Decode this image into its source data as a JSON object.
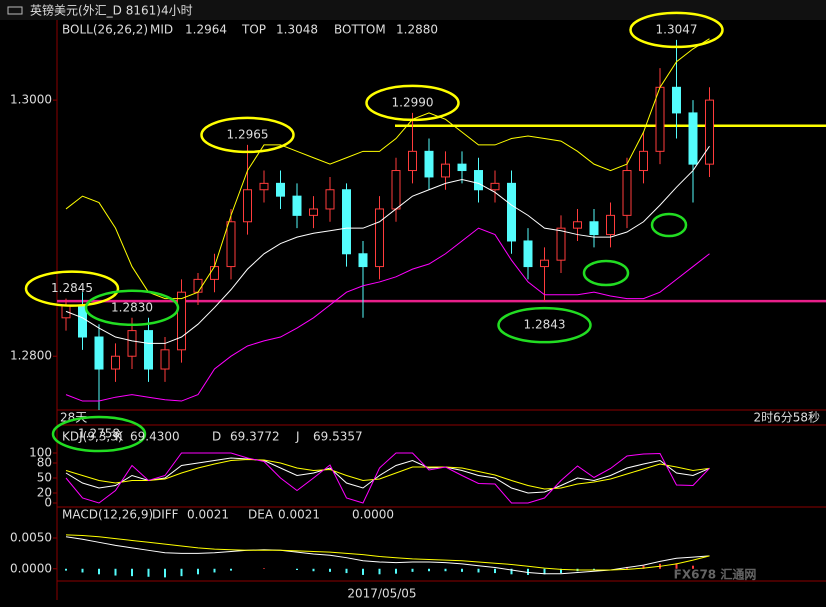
{
  "title": "英镑美元(外汇_D 8161)4小时",
  "x_label": "2017/05/05",
  "countdown_left": "28天",
  "countdown_right": "2时6分58秒",
  "watermark": "FX678 汇通网",
  "chart_data": [
    {
      "type": "candlestick",
      "indicator": "BOLL(26,26,2)",
      "up_color": "#ff3c3c",
      "down_color": "#54fcfc",
      "open": [
        1.283,
        1.284,
        1.2815,
        1.279,
        1.28,
        1.282,
        1.279,
        1.2805,
        1.285,
        1.286,
        1.287,
        1.2905,
        1.293,
        1.2935,
        1.2925,
        1.291,
        1.2915,
        1.293,
        1.288,
        1.287,
        1.2915,
        1.2945,
        1.296,
        1.294,
        1.295,
        1.2945,
        1.293,
        1.2935,
        1.289,
        1.287,
        1.2875,
        1.29,
        1.2905,
        1.2895,
        1.291,
        1.2945,
        1.296,
        1.301,
        1.299,
        1.295
      ],
      "high": [
        1.2845,
        1.285,
        1.2825,
        1.281,
        1.283,
        1.283,
        1.2815,
        1.286,
        1.2865,
        1.288,
        1.2915,
        1.2965,
        1.2945,
        1.2945,
        1.2935,
        1.2925,
        1.294,
        1.2935,
        1.289,
        1.2925,
        1.2955,
        1.299,
        1.297,
        1.296,
        1.296,
        1.2955,
        1.2945,
        1.2945,
        1.29,
        1.2885,
        1.291,
        1.2915,
        1.2915,
        1.292,
        1.2955,
        1.2975,
        1.3025,
        1.3047,
        1.3,
        1.301
      ],
      "low": [
        1.282,
        1.2805,
        1.2758,
        1.278,
        1.279,
        1.278,
        1.278,
        1.2795,
        1.284,
        1.285,
        1.286,
        1.2895,
        1.292,
        1.2915,
        1.29,
        1.29,
        1.2905,
        1.287,
        1.283,
        1.286,
        1.2905,
        1.2935,
        1.293,
        1.293,
        1.2935,
        1.292,
        1.292,
        1.288,
        1.286,
        1.2843,
        1.2865,
        1.289,
        1.2885,
        1.2885,
        1.29,
        1.2935,
        1.295,
        1.297,
        1.292,
        1.294
      ],
      "close": [
        1.284,
        1.2815,
        1.279,
        1.28,
        1.282,
        1.279,
        1.2805,
        1.285,
        1.286,
        1.287,
        1.2905,
        1.293,
        1.2935,
        1.2925,
        1.291,
        1.2915,
        1.293,
        1.288,
        1.287,
        1.2915,
        1.2945,
        1.296,
        1.294,
        1.295,
        1.2945,
        1.293,
        1.2935,
        1.289,
        1.287,
        1.2875,
        1.29,
        1.2905,
        1.2895,
        1.291,
        1.2945,
        1.296,
        1.301,
        1.299,
        1.295,
        1.3
      ],
      "series": [
        {
          "name": "MID",
          "color": "#ffffff",
          "readout": 1.2964,
          "values": [
            1.2835,
            1.283,
            1.2822,
            1.2815,
            1.2812,
            1.281,
            1.281,
            1.2815,
            1.2825,
            1.2838,
            1.2852,
            1.2868,
            1.288,
            1.2888,
            1.2893,
            1.2896,
            1.2898,
            1.29,
            1.29,
            1.2905,
            1.2915,
            1.2925,
            1.293,
            1.2935,
            1.2938,
            1.2935,
            1.2928,
            1.2918,
            1.291,
            1.29,
            1.2898,
            1.2895,
            1.2893,
            1.2893,
            1.2897,
            1.2905,
            1.2918,
            1.2932,
            1.2945,
            1.2964
          ]
        },
        {
          "name": "TOP",
          "color": "#ffff00",
          "readout": 1.3048,
          "values": [
            1.2915,
            1.2925,
            1.292,
            1.29,
            1.287,
            1.285,
            1.2845,
            1.2845,
            1.285,
            1.287,
            1.291,
            1.2945,
            1.2965,
            1.2965,
            1.296,
            1.2955,
            1.295,
            1.2955,
            1.296,
            1.296,
            1.297,
            1.2985,
            1.299,
            1.2985,
            1.2975,
            1.2965,
            1.2965,
            1.297,
            1.2972,
            1.297,
            1.2968,
            1.296,
            1.295,
            1.2945,
            1.295,
            1.2975,
            1.301,
            1.303,
            1.304,
            1.3048
          ]
        },
        {
          "name": "BOTTOM",
          "color": "#ff00ff",
          "readout": {
            "value": 1.288,
            "label": "1.2880"
          },
          "values": [
            1.277,
            1.2765,
            1.2765,
            1.2768,
            1.277,
            1.2768,
            1.2766,
            1.2765,
            1.277,
            1.279,
            1.28,
            1.2808,
            1.2812,
            1.2815,
            1.2822,
            1.283,
            1.284,
            1.285,
            1.2855,
            1.2858,
            1.2862,
            1.2868,
            1.2872,
            1.288,
            1.289,
            1.29,
            1.2895,
            1.2875,
            1.2858,
            1.2848,
            1.2848,
            1.2848,
            1.285,
            1.2847,
            1.2845,
            1.2845,
            1.285,
            1.286,
            1.287,
            1.288
          ]
        }
      ],
      "ylim": [
        1.2758,
        1.3061
      ],
      "yticks": [
        {
          "value": 1.3,
          "label": "1.3000"
        },
        {
          "value": 1.28,
          "label": "1.2800"
        }
      ],
      "hlines": [
        {
          "value": 1.298,
          "color": "#ffff00"
        },
        {
          "value": 1.2843,
          "color": "#e8208a"
        }
      ],
      "annotations": [
        {
          "value": 1.2845,
          "color": "#ff3c3c",
          "ring": "#ffff00"
        },
        {
          "value": 1.2965,
          "color": "#ff3c3c",
          "ring": "#ffff00"
        },
        {
          "value": 1.299,
          "label": "1.2990",
          "color": "#ff3c3c",
          "ring": "#ffff00"
        },
        {
          "value": 1.3047,
          "color": "#ff3c3c",
          "ring": "#ffff00"
        },
        {
          "value": 1.2758,
          "color": "#54fcfc",
          "ring": "#22dd22"
        },
        {
          "value": 1.283,
          "label": "1.2830",
          "color": "#54fcfc",
          "ring": "#22dd22"
        },
        {
          "value": 1.2843,
          "color": "#54fcfc",
          "ring": "#22dd22"
        }
      ]
    },
    {
      "type": "line",
      "indicator": "KDJ(9,3,3)",
      "series": [
        {
          "name": "K",
          "color": "#ffffff",
          "readout": {
            "value": 69.43,
            "label": "69.4300"
          },
          "values": [
            60,
            40,
            30,
            35,
            55,
            45,
            50,
            75,
            80,
            85,
            90,
            88,
            85,
            70,
            55,
            60,
            70,
            40,
            30,
            55,
            75,
            85,
            70,
            72,
            65,
            55,
            50,
            30,
            20,
            22,
            35,
            50,
            45,
            55,
            70,
            78,
            85,
            60,
            55,
            69.43
          ]
        },
        {
          "name": "D",
          "color": "#ffff00",
          "readout": 69.3772,
          "values": [
            65,
            55,
            45,
            40,
            45,
            45,
            48,
            60,
            70,
            78,
            85,
            87,
            86,
            80,
            70,
            65,
            67,
            55,
            45,
            48,
            60,
            72,
            72,
            72,
            70,
            63,
            56,
            45,
            35,
            28,
            30,
            38,
            42,
            48,
            58,
            68,
            78,
            72,
            65,
            69.3772
          ]
        },
        {
          "name": "J",
          "color": "#ff00ff",
          "readout": 69.5357,
          "values": [
            50,
            10,
            0,
            25,
            75,
            45,
            55,
            100,
            100,
            100,
            100,
            90,
            83,
            50,
            25,
            50,
            76,
            10,
            0,
            70,
            100,
            100,
            66,
            72,
            55,
            39,
            38,
            0,
            0,
            10,
            45,
            74,
            51,
            69,
            94,
            98,
            99,
            36,
            35,
            69.5357
          ]
        }
      ],
      "ylim": [
        -4,
        146
      ],
      "yticks": [
        0,
        20,
        50,
        80,
        100
      ]
    },
    {
      "type": "macd",
      "indicator": "MACD(12,26,9)",
      "series": [
        {
          "name": "DIFF",
          "color": "#ffffff",
          "readout": 0.0021,
          "values": [
            0.0052,
            0.0048,
            0.0043,
            0.0038,
            0.0034,
            0.003,
            0.0026,
            0.0025,
            0.0025,
            0.0026,
            0.0028,
            0.003,
            0.0031,
            0.003,
            0.0027,
            0.0024,
            0.0022,
            0.0018,
            0.0013,
            0.0011,
            0.001,
            0.0011,
            0.0011,
            0.001,
            0.0008,
            0.0005,
            0.0002,
            -0.0002,
            -0.0006,
            -0.0008,
            -0.0008,
            -0.0006,
            -0.0004,
            -0.0002,
            0.0002,
            0.0006,
            0.0012,
            0.0017,
            0.0019,
            0.0021
          ]
        },
        {
          "name": "DEA",
          "color": "#ffff00",
          "readout": 0.0021,
          "values": [
            0.0055,
            0.0054,
            0.0052,
            0.0049,
            0.0046,
            0.0043,
            0.004,
            0.0037,
            0.0034,
            0.0032,
            0.0031,
            0.003,
            0.003,
            0.003,
            0.0029,
            0.0028,
            0.0027,
            0.0025,
            0.0023,
            0.002,
            0.0018,
            0.0016,
            0.0015,
            0.0014,
            0.0013,
            0.0011,
            0.0009,
            0.0007,
            0.0004,
            0.0001,
            -0.0001,
            -0.0002,
            -0.0002,
            -0.0002,
            -0.0001,
            0.0001,
            0.0004,
            0.0008,
            0.0014,
            0.0021
          ]
        }
      ],
      "bars": {
        "up_color": "#ff3c3c",
        "down_color": "#54fcfc",
        "readout": {
          "value": 0,
          "label": "0.0000"
        },
        "values": [
          -0.0003,
          -0.0006,
          -0.0009,
          -0.0011,
          -0.0012,
          -0.0013,
          -0.0014,
          -0.0012,
          -0.0009,
          -0.0006,
          -0.0003,
          0,
          0.0001,
          0,
          -0.0002,
          -0.0004,
          -0.0005,
          -0.0007,
          -0.001,
          -0.0009,
          -0.0008,
          -0.0005,
          -0.0004,
          -0.0004,
          -0.0005,
          -0.0006,
          -0.0007,
          -0.0009,
          -0.001,
          -0.0009,
          -0.0007,
          -0.0004,
          -0.0002,
          0,
          0.0003,
          0.0005,
          0.0008,
          0.0009,
          0.0005,
          0
        ]
      },
      "ylim": [
        -0.0015,
        0.0076
      ],
      "yticks": [
        {
          "value": 0.005,
          "label": "0.0050"
        },
        {
          "value": 0,
          "label": "0.0000"
        }
      ]
    }
  ]
}
